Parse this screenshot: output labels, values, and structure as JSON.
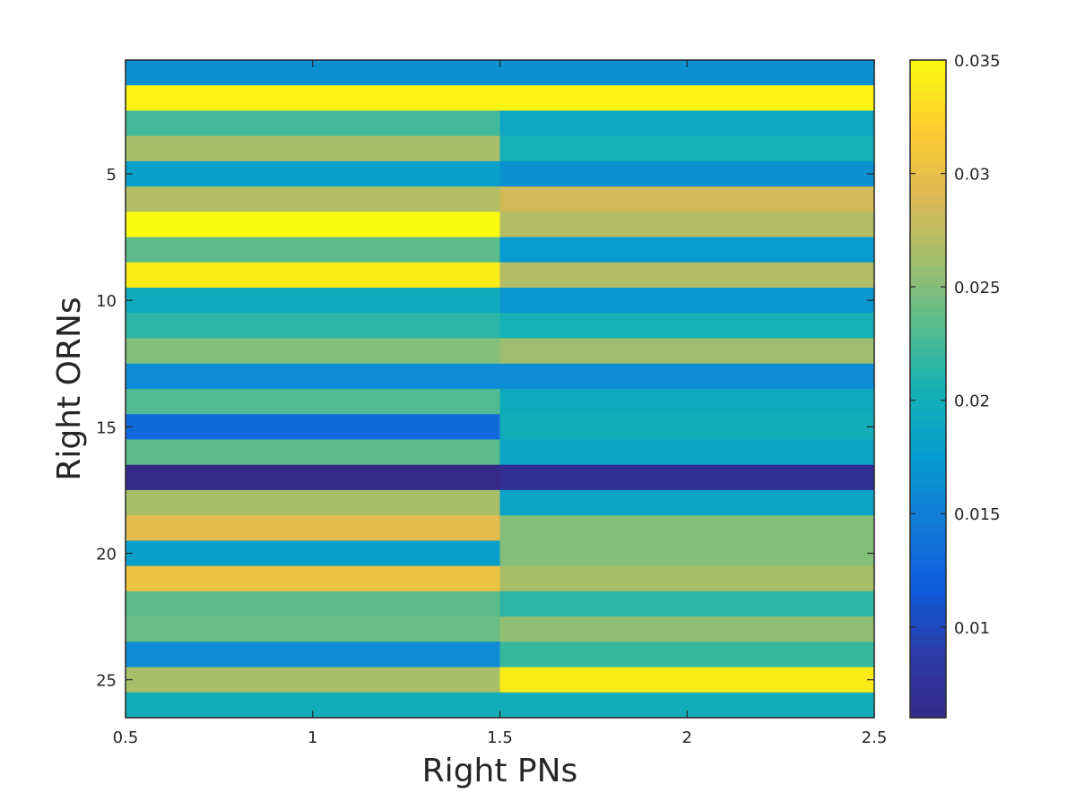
{
  "chart_data": {
    "type": "heatmap",
    "title": "",
    "xlabel": "Right PNs",
    "ylabel": "Right ORNs",
    "x_categories": [
      1,
      2
    ],
    "y_categories": [
      1,
      2,
      3,
      4,
      5,
      6,
      7,
      8,
      9,
      10,
      11,
      12,
      13,
      14,
      15,
      16,
      17,
      18,
      19,
      20,
      21,
      22,
      23,
      24,
      25,
      26
    ],
    "xlim": [
      0.5,
      2.5
    ],
    "ylim": [
      0.5,
      26.5
    ],
    "y_reversed": true,
    "x_ticks": [
      0.5,
      1,
      1.5,
      2,
      2.5
    ],
    "x_tick_labels": [
      "0.5",
      "1",
      "1.5",
      "2",
      "2.5"
    ],
    "y_ticks": [
      5,
      10,
      15,
      20,
      25
    ],
    "y_tick_labels": [
      "5",
      "10",
      "15",
      "20",
      "25"
    ],
    "colormap": "parula",
    "clim": [
      0.006,
      0.035
    ],
    "colorbar": {
      "ticks": [
        0.01,
        0.015,
        0.02,
        0.025,
        0.03,
        0.035
      ],
      "tick_labels": [
        "0.01",
        "0.015",
        "0.02",
        "0.025",
        "0.03",
        "0.035"
      ],
      "placement": "right"
    },
    "grid": false,
    "values": [
      [
        0.0165,
        0.0165
      ],
      [
        0.0345,
        0.0345
      ],
      [
        0.0225,
        0.019
      ],
      [
        0.0265,
        0.0205
      ],
      [
        0.018,
        0.0165
      ],
      [
        0.027,
        0.0285
      ],
      [
        0.035,
        0.027
      ],
      [
        0.0235,
        0.0175
      ],
      [
        0.034,
        0.027
      ],
      [
        0.0195,
        0.017
      ],
      [
        0.0215,
        0.0205
      ],
      [
        0.025,
        0.026
      ],
      [
        0.016,
        0.016
      ],
      [
        0.023,
        0.0195
      ],
      [
        0.013,
        0.02
      ],
      [
        0.0235,
        0.0185
      ],
      [
        0.006,
        0.007
      ],
      [
        0.0265,
        0.0185
      ],
      [
        0.0295,
        0.025
      ],
      [
        0.018,
        0.025
      ],
      [
        0.0305,
        0.0265
      ],
      [
        0.0235,
        0.0215
      ],
      [
        0.024,
        0.0255
      ],
      [
        0.016,
        0.022
      ],
      [
        0.0265,
        0.034
      ],
      [
        0.02,
        0.02
      ]
    ]
  }
}
